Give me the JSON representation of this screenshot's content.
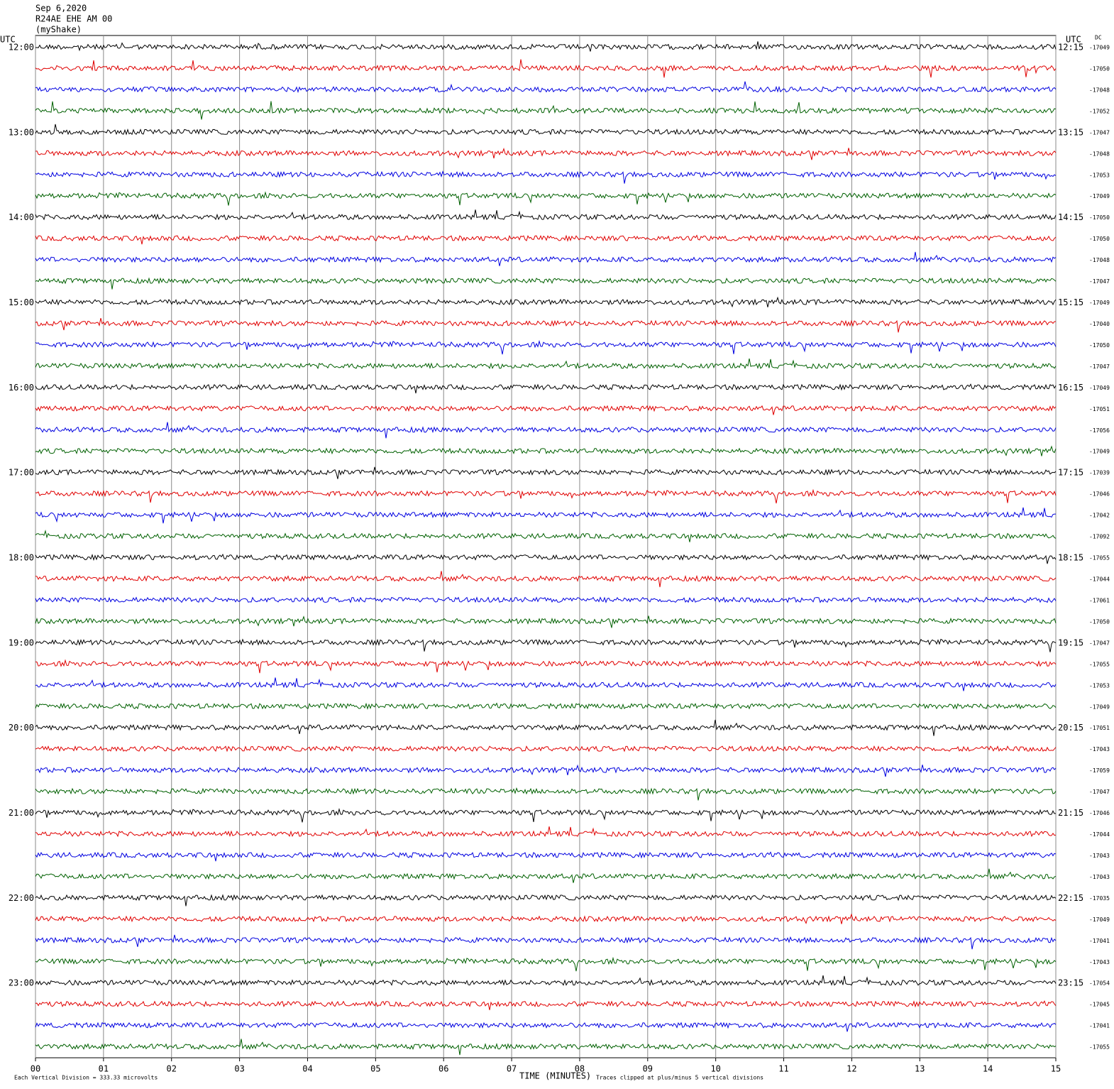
{
  "chart_data": {
    "type": "helicorder",
    "title": "Sep 6,2020",
    "subtitle": "R24AE EHE AM 00",
    "source": "(myShake)",
    "left_axis_label": "UTC",
    "right_axis_label": "UTC",
    "dc_label": "DC",
    "left_time_labels": [
      "12:00",
      "13:00",
      "14:00",
      "15:00",
      "16:00",
      "17:00",
      "18:00",
      "19:00",
      "20:00",
      "21:00",
      "22:00",
      "23:00"
    ],
    "right_time_labels": [
      "12:15",
      "13:15",
      "14:15",
      "15:15",
      "16:15",
      "17:15",
      "18:15",
      "19:15",
      "20:15",
      "21:15",
      "22:15",
      "23:15"
    ],
    "dc_values": [
      -17049,
      -17050,
      -17048,
      -17052,
      -17047,
      -17048,
      -17053,
      -17049,
      -17050,
      -17050,
      -17048,
      -17047,
      -17049,
      -17040,
      -17050,
      -17047,
      -17049,
      -17051,
      -17056,
      -17049,
      -17039,
      -17046,
      -17042,
      -17092,
      -17055,
      -17044,
      -17061,
      -17050,
      -17047,
      -17055,
      -17053,
      -17049,
      -17051,
      -17043,
      -17059,
      -17047,
      -17046,
      -17044,
      -17043,
      -17043,
      -17035,
      -17049,
      -17041,
      -17043,
      -17054,
      -17045,
      -17041,
      -17055
    ],
    "trace_colors": [
      "#000000",
      "#e00000",
      "#0000e0",
      "#006000"
    ],
    "xlim": [
      0,
      15
    ],
    "xticks": [
      {
        "value": 0,
        "label": "00"
      },
      {
        "value": 1,
        "label": "01"
      },
      {
        "value": 2,
        "label": "02"
      },
      {
        "value": 3,
        "label": "03"
      },
      {
        "value": 4,
        "label": "04"
      },
      {
        "value": 5,
        "label": "05"
      },
      {
        "value": 6,
        "label": "06"
      },
      {
        "value": 7,
        "label": "07"
      },
      {
        "value": 8,
        "label": "08"
      },
      {
        "value": 9,
        "label": "09"
      },
      {
        "value": 10,
        "label": "10"
      },
      {
        "value": 11,
        "label": "11"
      },
      {
        "value": 12,
        "label": "12"
      },
      {
        "value": 13,
        "label": "13"
      },
      {
        "value": 14,
        "label": "14"
      },
      {
        "value": 15,
        "label": "15"
      }
    ],
    "xlabel": "TIME (MINUTES)",
    "scale_note": "Each Vertical Division =  333.33 microvolts",
    "clip_note": "Traces clipped at plus/minus 5 vertical divisions",
    "grid": true
  }
}
